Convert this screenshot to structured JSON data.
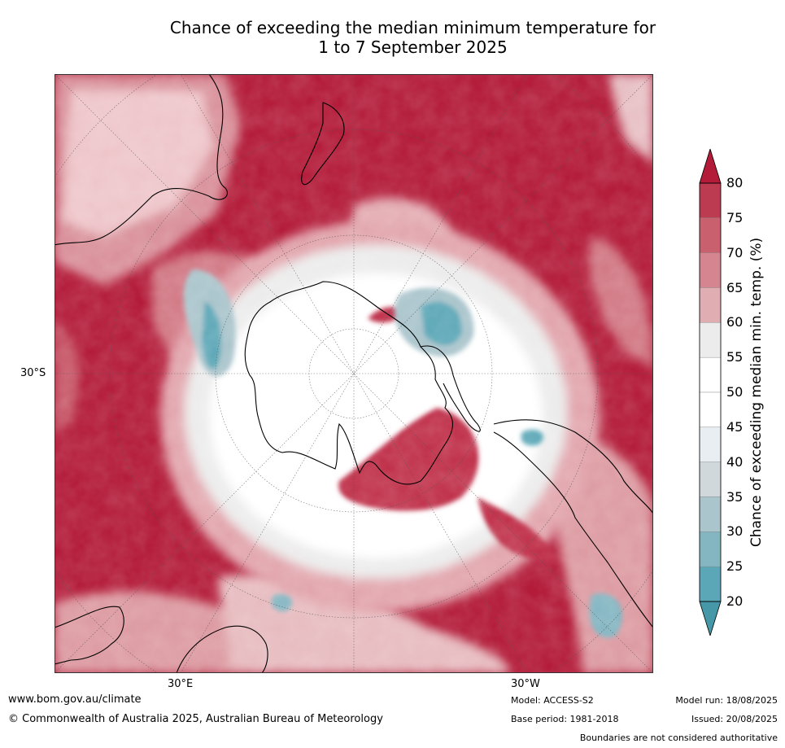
{
  "title_line1": "Chance of exceeding the median minimum temperature for",
  "title_line2": "1 to 7 September 2025",
  "map": {
    "lat_label": "30°S",
    "lon_labels": [
      "30°E",
      "30°W"
    ],
    "colors": {
      "ocean_warm": "#b31b39",
      "red_75": "#c44a5d",
      "red_70": "#d0737f",
      "red_65": "#dd9ba2",
      "red_60": "#e7bcc0",
      "grey_55": "#ececec",
      "white_50": "#ffffff",
      "light_40": "#e8eef1",
      "blue_35": "#cfd8dd",
      "blue_30": "#aac5cc",
      "blue_25": "#84b6c2",
      "blue_20": "#5ba7b7"
    }
  },
  "colorbar": {
    "label": "Chance of exceeding median min. temp. (%)",
    "ticks": [
      "80",
      "75",
      "70",
      "65",
      "60",
      "55",
      "50",
      "45",
      "40",
      "35",
      "30",
      "25",
      "20"
    ],
    "colors_top_to_bottom": [
      "#b31b39",
      "#bd3b51",
      "#c8606e",
      "#d4858f",
      "#e0adb3",
      "#ececec",
      "#ffffff",
      "#ffffff",
      "#e8eef1",
      "#d1d8dc",
      "#aac5cc",
      "#84b6c2",
      "#5ba7b7",
      "#4697a8"
    ]
  },
  "footer": {
    "website": "www.bom.gov.au/climate",
    "copyright": "© Commonwealth of Australia 2025, Australian Bureau of Meteorology",
    "model": "Model: ACCESS-S2",
    "base_period": "Base period: 1981-2018",
    "model_run": "Model run: 18/08/2025",
    "issued": "Issued: 20/08/2025",
    "boundaries": "Boundaries are not considered authoritative"
  }
}
